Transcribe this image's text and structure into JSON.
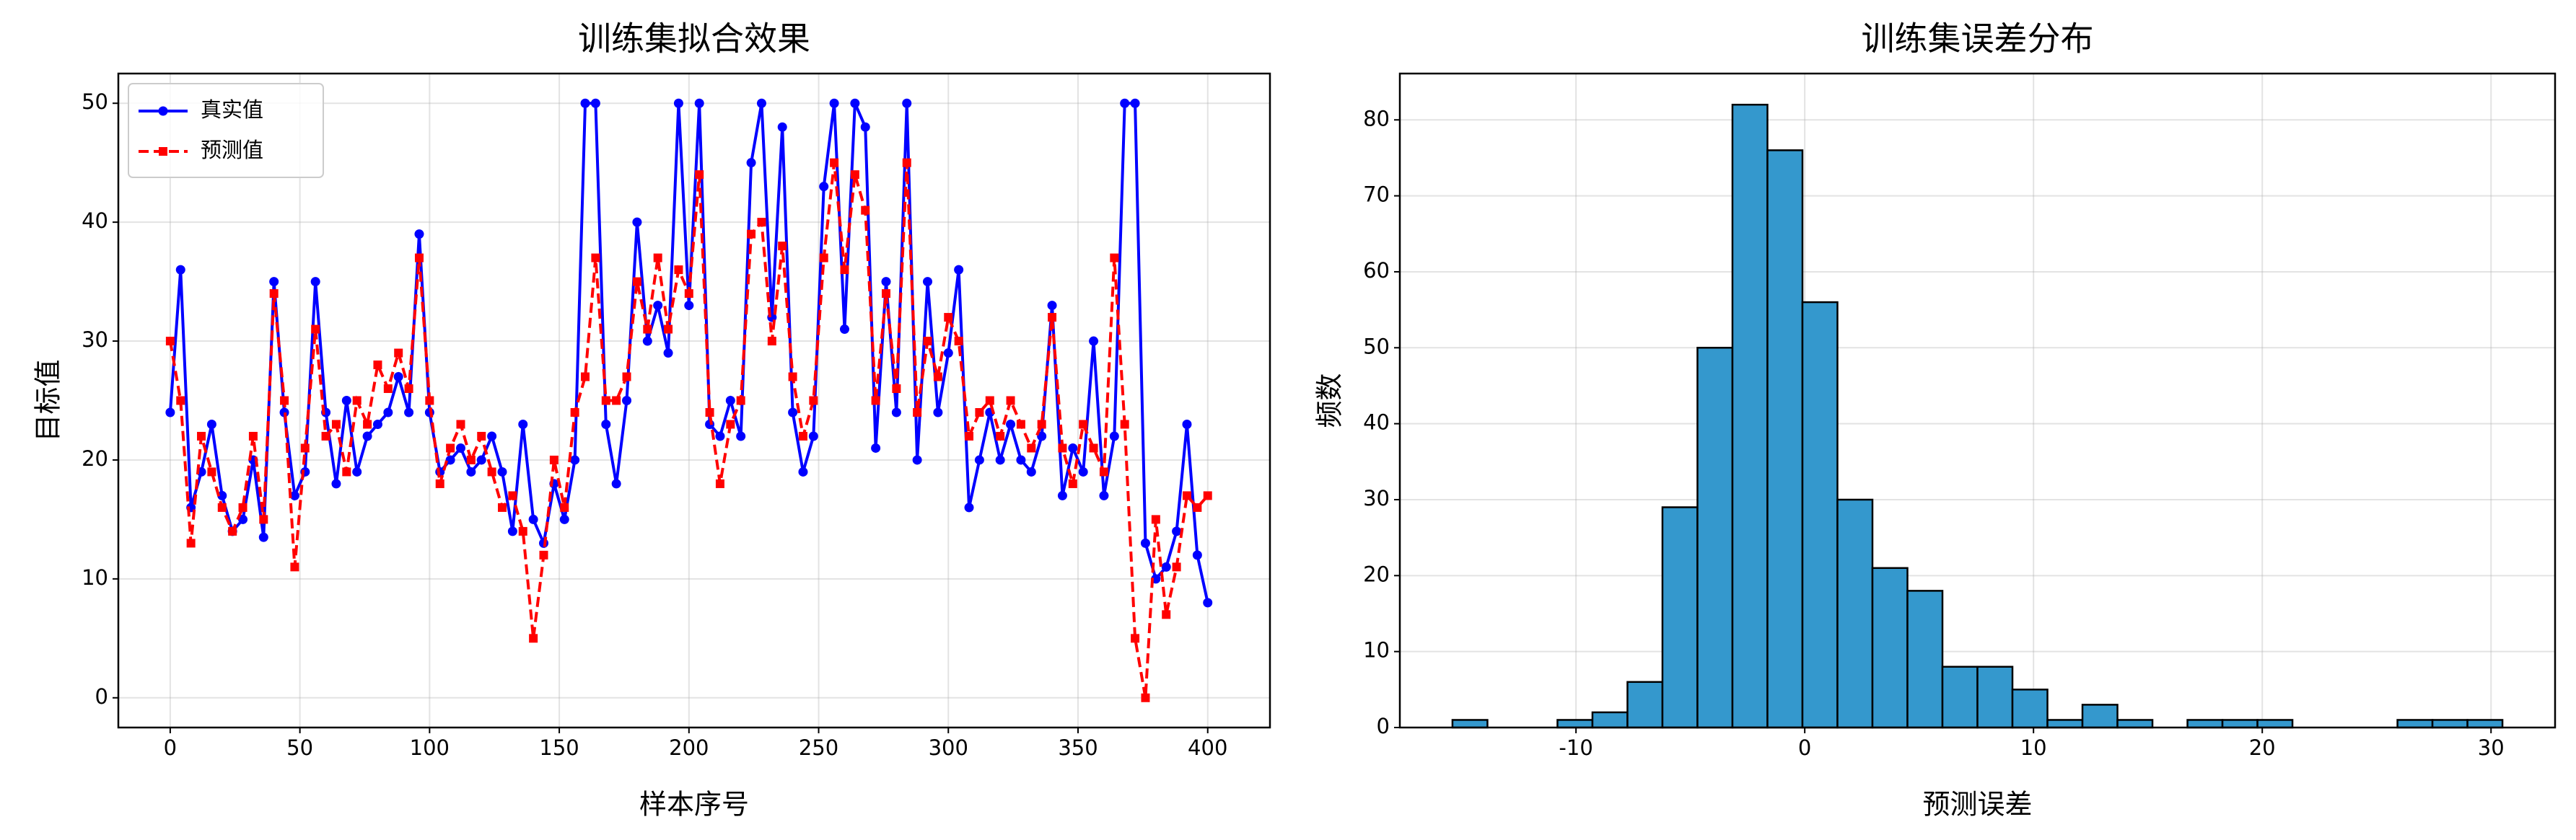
{
  "chart_data": [
    {
      "type": "line",
      "title": "训练集拟合效果",
      "xlabel": "样本序号",
      "ylabel": "目标值",
      "x": [
        0,
        4,
        8,
        12,
        16,
        20,
        24,
        28,
        32,
        36,
        40,
        44,
        48,
        52,
        56,
        60,
        64,
        68,
        72,
        76,
        80,
        84,
        88,
        92,
        96,
        100,
        104,
        108,
        112,
        116,
        120,
        124,
        128,
        132,
        136,
        140,
        144,
        148,
        152,
        156,
        160,
        164,
        168,
        172,
        176,
        180,
        184,
        188,
        192,
        196,
        200,
        204,
        208,
        212,
        216,
        220,
        224,
        228,
        232,
        236,
        240,
        244,
        248,
        252,
        256,
        260,
        264,
        268,
        272,
        276,
        280,
        284,
        288,
        292,
        296,
        300,
        304,
        308,
        312,
        316,
        320,
        324,
        328,
        332,
        336,
        340,
        344,
        348,
        352,
        356,
        360,
        364,
        368,
        372,
        376,
        380,
        384,
        388,
        392,
        396,
        400
      ],
      "series": [
        {
          "name": "真实值",
          "color": "#0000ff",
          "marker": "circle",
          "dash": false,
          "values": [
            24,
            36,
            16,
            19,
            23,
            17,
            14,
            15,
            20,
            13.5,
            35,
            24,
            17,
            19,
            35,
            24,
            18,
            25,
            19,
            22,
            23,
            24,
            27,
            24,
            39,
            24,
            19,
            20,
            21,
            19,
            20,
            22,
            19,
            14,
            23,
            15,
            13,
            18,
            15,
            20,
            50,
            50,
            23,
            18,
            25,
            40,
            30,
            33,
            29,
            50,
            33,
            50,
            23,
            22,
            25,
            22,
            45,
            50,
            32,
            48,
            24,
            19,
            22,
            43,
            50,
            31,
            50,
            48,
            21,
            35,
            24,
            50,
            20,
            35,
            24,
            29,
            36,
            16,
            20,
            24,
            20,
            23,
            20,
            19,
            22,
            33,
            17,
            21,
            19,
            30,
            17,
            22,
            50,
            50,
            13,
            10,
            11,
            14,
            23,
            12,
            8
          ]
        },
        {
          "name": "预测值",
          "color": "#ff0000",
          "marker": "square",
          "dash": true,
          "values": [
            30,
            25,
            13,
            22,
            19,
            16,
            14,
            16,
            22,
            15,
            34,
            25,
            11,
            21,
            31,
            22,
            23,
            19,
            25,
            23,
            28,
            26,
            29,
            26,
            37,
            25,
            18,
            21,
            23,
            20,
            22,
            19,
            16,
            17,
            14,
            5,
            12,
            20,
            16,
            24,
            27,
            37,
            25,
            25,
            27,
            35,
            31,
            37,
            31,
            36,
            34,
            44,
            24,
            18,
            23,
            25,
            39,
            40,
            30,
            38,
            27,
            22,
            25,
            37,
            45,
            36,
            44,
            41,
            25,
            34,
            26,
            45,
            24,
            30,
            27,
            32,
            30,
            22,
            24,
            25,
            22,
            25,
            23,
            21,
            23,
            32,
            21,
            18,
            23,
            21,
            19,
            37,
            23,
            5,
            0,
            15,
            7,
            11,
            17,
            16,
            17
          ]
        }
      ],
      "xlim": [
        -20,
        424
      ],
      "xticks": [
        0,
        50,
        100,
        150,
        200,
        250,
        300,
        350,
        400
      ],
      "ylim": [
        -2.5,
        52.5
      ],
      "yticks": [
        0,
        10,
        20,
        30,
        40,
        50
      ],
      "grid": true,
      "legend": "upper-left"
    },
    {
      "type": "histogram",
      "title": "训练集误差分布",
      "xlabel": "预测误差",
      "ylabel": "频数",
      "bins": [
        -15.4,
        -13.87,
        -12.34,
        -10.81,
        -9.28,
        -7.75,
        -6.22,
        -4.69,
        -3.16,
        -1.63,
        -0.1,
        1.43,
        2.96,
        4.49,
        6.02,
        7.55,
        9.08,
        10.61,
        12.14,
        13.67,
        15.2,
        16.73,
        18.26,
        19.79,
        21.32,
        22.85,
        24.38,
        25.91,
        27.44,
        28.97,
        30.5
      ],
      "values": [
        1,
        0,
        0,
        1,
        2,
        6,
        29,
        50,
        82,
        76,
        56,
        30,
        21,
        18,
        8,
        8,
        5,
        1,
        3,
        1,
        0,
        1,
        1,
        1,
        0,
        0,
        0,
        1,
        1,
        1
      ],
      "color": "#3498cd",
      "edgecolor": "#000000",
      "xlim": [
        -17.7,
        32.8
      ],
      "xticks": [
        -10,
        0,
        10,
        20,
        30
      ],
      "ylim": [
        0,
        86.1
      ],
      "yticks": [
        0,
        10,
        20,
        30,
        40,
        50,
        60,
        70,
        80
      ],
      "grid": true
    }
  ]
}
